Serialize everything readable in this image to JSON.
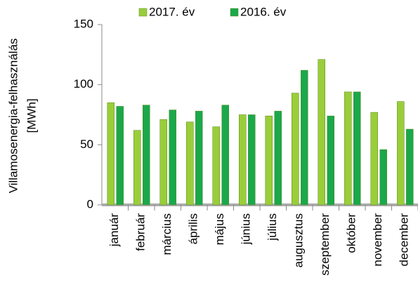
{
  "chart_data": {
    "type": "bar",
    "ylabel": [
      "Villamosenergia-felhasználás",
      "[MWh]"
    ],
    "categories": [
      "január",
      "február",
      "március",
      "április",
      "május",
      "június",
      "július",
      "augusztus",
      "szeptember",
      "október",
      "november",
      "december"
    ],
    "series": [
      {
        "name": "2017. év",
        "color": "#9acd3a",
        "values": [
          85,
          62,
          71,
          69,
          65,
          75,
          74,
          93,
          121,
          94,
          77,
          86
        ]
      },
      {
        "name": "2016. év",
        "color": "#1aa84b",
        "values": [
          82,
          83,
          79,
          78,
          83,
          75,
          78,
          112,
          74,
          94,
          46,
          63
        ]
      }
    ],
    "ylim": [
      0,
      150
    ],
    "yticks": [
      0,
      50,
      100,
      150
    ],
    "legend": "top"
  }
}
